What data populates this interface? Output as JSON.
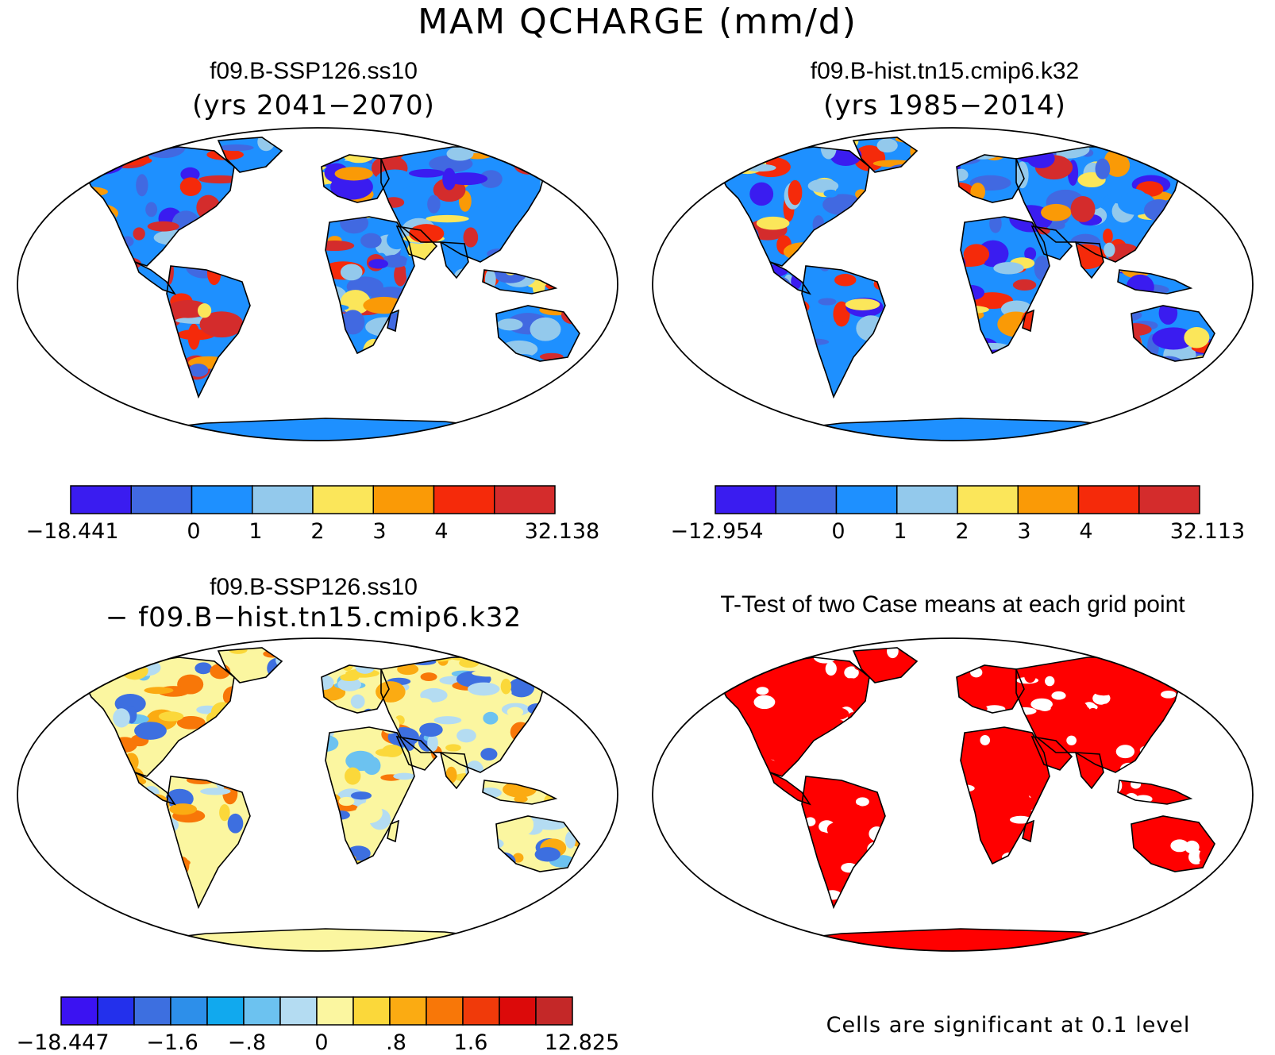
{
  "main_title": "MAM QCHARGE (mm/d)",
  "panels": {
    "p1": {
      "title": "f09.B-SSP126.ss10",
      "subtitle": "(yrs 2041−2070)"
    },
    "p2": {
      "title": "f09.B-hist.tn15.cmip6.k32",
      "subtitle": "(yrs 1985−2014)"
    },
    "p3": {
      "title": "f09.B-SSP126.ss10",
      "subtitle": "− f09.B−hist.tn15.cmip6.k32"
    },
    "p4": {
      "title": "T-Test of two Case means at each grid point",
      "note": "Cells are significant at 0.1 level"
    }
  },
  "colorbars": {
    "cb1": {
      "colors": [
        "#3a1cf0",
        "#4169e1",
        "#1e90ff",
        "#93c9ec",
        "#fbe65a",
        "#fa9a06",
        "#f52a0a",
        "#d42c2c"
      ],
      "labels": [
        "−18.441",
        "0",
        "1",
        "2",
        "3",
        "4",
        "32.138"
      ]
    },
    "cb2": {
      "colors": [
        "#3a1cf0",
        "#4169e1",
        "#1e90ff",
        "#93c9ec",
        "#fbe65a",
        "#fa9a06",
        "#f52a0a",
        "#d42c2c"
      ],
      "labels": [
        "−12.954",
        "0",
        "1",
        "2",
        "3",
        "4",
        "32.113"
      ]
    },
    "cb3": {
      "colors": [
        "#3b12f2",
        "#2330ec",
        "#3d6fe0",
        "#2d8fea",
        "#11a9ee",
        "#6cc2f0",
        "#b4dcf2",
        "#fbf6a0",
        "#fbd83a",
        "#fbab12",
        "#f87708",
        "#f03a0a",
        "#dc0a0a",
        "#c42828"
      ],
      "labels": [
        "−18.447",
        "−1.6",
        "−.8",
        "0",
        ".8",
        "1.6",
        "12.825"
      ]
    }
  }
}
